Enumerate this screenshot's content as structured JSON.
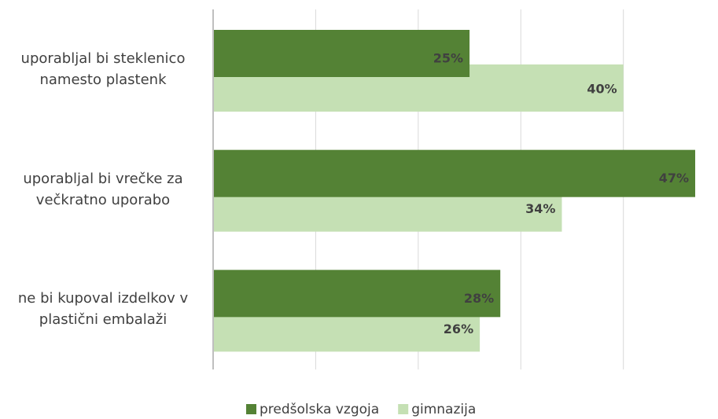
{
  "chart_data": {
    "type": "barh",
    "categories": [
      "uporabljal bi steklenico namesto plastenk",
      "uporabljal bi vrečke za večkratno uporabo",
      "ne bi kupoval izdelkov v plastični embalaži"
    ],
    "series": [
      {
        "name": "predšolska vzgoja",
        "color": "#548235",
        "values": [
          25,
          47,
          28
        ],
        "value_labels": [
          "25%",
          "47%",
          "28%"
        ]
      },
      {
        "name": "gimnazija",
        "color": "#c5e0b4",
        "values": [
          40,
          34,
          26
        ],
        "value_labels": [
          "40%",
          "34%",
          "26%"
        ]
      }
    ],
    "xlim": [
      0,
      47
    ],
    "xticks": [
      0,
      10,
      20,
      30,
      40
    ],
    "grid": true,
    "legend": "bottom"
  }
}
